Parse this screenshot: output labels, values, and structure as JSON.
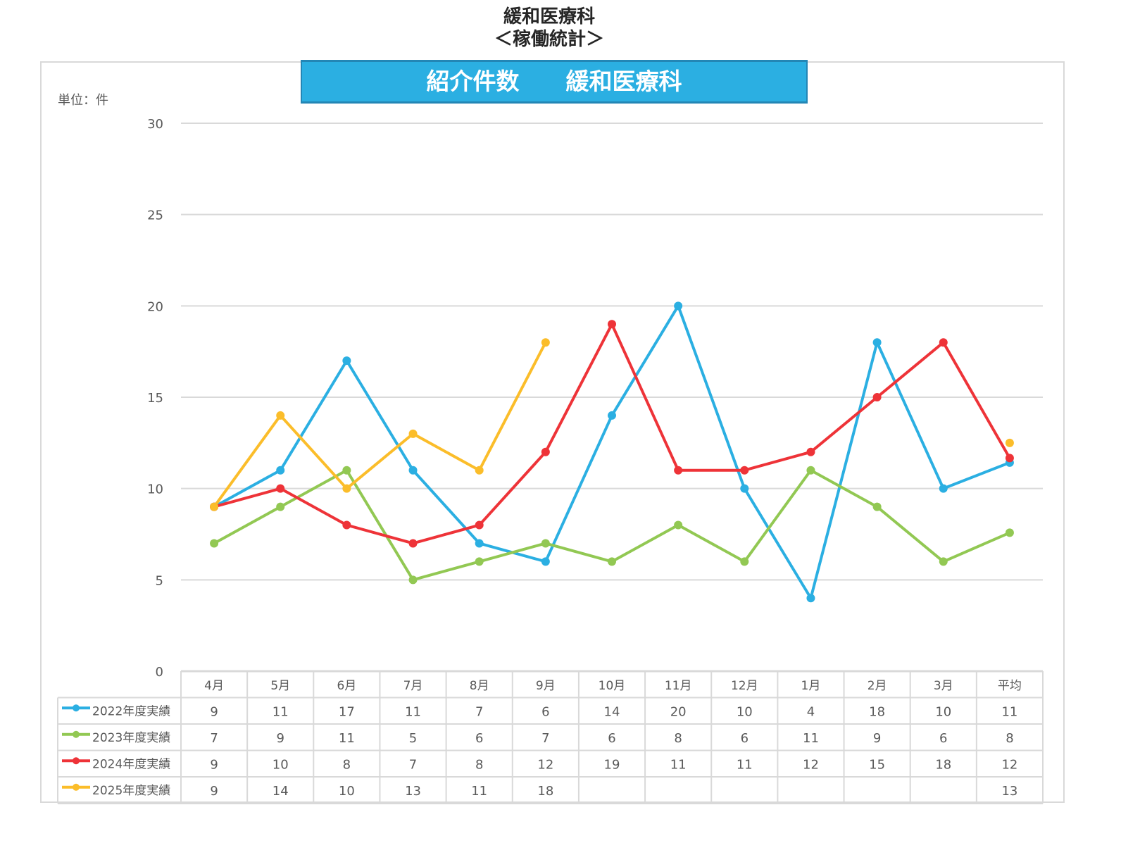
{
  "header": {
    "title_line1": "緩和医療科",
    "title_line2": "＜稼働統計＞"
  },
  "chart_data": {
    "type": "line",
    "title": "紹介件数　　緩和医療科",
    "unit_label": "単位：件",
    "ylim": [
      0,
      30
    ],
    "yticks": [
      0,
      5,
      10,
      15,
      20,
      25,
      30
    ],
    "grid": true,
    "legend_placement": "data-table-left",
    "categories": [
      "4月",
      "5月",
      "6月",
      "7月",
      "8月",
      "9月",
      "10月",
      "11月",
      "12月",
      "1月",
      "2月",
      "3月",
      "平均"
    ],
    "series": [
      {
        "name": "2022年度実績",
        "color": "#2bafe2",
        "values": [
          9,
          11,
          17,
          11,
          7,
          6,
          14,
          20,
          10,
          4,
          18,
          10,
          11.42
        ],
        "table": [
          "9",
          "11",
          "17",
          "11",
          "7",
          "6",
          "14",
          "20",
          "10",
          "4",
          "18",
          "10",
          "11"
        ]
      },
      {
        "name": "2023年度実績",
        "color": "#92c853",
        "values": [
          7,
          9,
          11,
          5,
          6,
          7,
          6,
          8,
          6,
          11,
          9,
          6,
          7.58
        ],
        "table": [
          "7",
          "9",
          "11",
          "5",
          "6",
          "7",
          "6",
          "8",
          "6",
          "11",
          "9",
          "6",
          "8"
        ]
      },
      {
        "name": "2024年度実績",
        "color": "#ee3338",
        "values": [
          9,
          10,
          8,
          7,
          8,
          12,
          19,
          11,
          11,
          12,
          15,
          18,
          11.67
        ],
        "table": [
          "9",
          "10",
          "8",
          "7",
          "8",
          "12",
          "19",
          "11",
          "11",
          "12",
          "15",
          "18",
          "12"
        ]
      },
      {
        "name": "2025年度実績",
        "color": "#fbbd2a",
        "values": [
          9,
          14,
          10,
          13,
          11,
          18,
          null,
          null,
          null,
          null,
          null,
          null,
          12.5
        ],
        "table": [
          "9",
          "14",
          "10",
          "13",
          "11",
          "18",
          "",
          "",
          "",
          "",
          "",
          "",
          "13"
        ]
      }
    ]
  }
}
